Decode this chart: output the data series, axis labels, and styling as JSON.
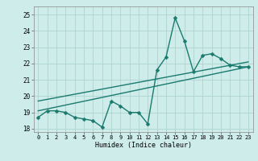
{
  "xlabel": "Humidex (Indice chaleur)",
  "background_color": "#ceecea",
  "grid_color": "#aed4d2",
  "line_color": "#1a7a6e",
  "xlim": [
    -0.5,
    23.5
  ],
  "ylim": [
    17.8,
    25.5
  ],
  "yticks": [
    18,
    19,
    20,
    21,
    22,
    23,
    24,
    25
  ],
  "xticks": [
    0,
    1,
    2,
    3,
    4,
    5,
    6,
    7,
    8,
    9,
    10,
    11,
    12,
    13,
    14,
    15,
    16,
    17,
    18,
    19,
    20,
    21,
    22,
    23
  ],
  "line1_x": [
    0,
    1,
    2,
    3,
    4,
    5,
    6,
    7,
    8,
    9,
    10,
    11,
    12,
    13,
    14,
    15,
    16,
    17,
    18,
    19,
    20,
    21,
    22,
    23
  ],
  "line1_y": [
    18.7,
    19.1,
    19.1,
    19.0,
    18.7,
    18.6,
    18.5,
    18.1,
    19.7,
    19.4,
    19.0,
    19.0,
    18.3,
    21.6,
    22.4,
    24.8,
    23.4,
    21.5,
    22.5,
    22.6,
    22.3,
    21.9,
    21.8,
    21.8
  ],
  "line2_x": [
    0,
    23
  ],
  "line2_y": [
    19.1,
    21.8
  ],
  "line3_x": [
    0,
    23
  ],
  "line3_y": [
    19.7,
    22.1
  ],
  "marker_size": 2.5,
  "line_width": 1.0
}
